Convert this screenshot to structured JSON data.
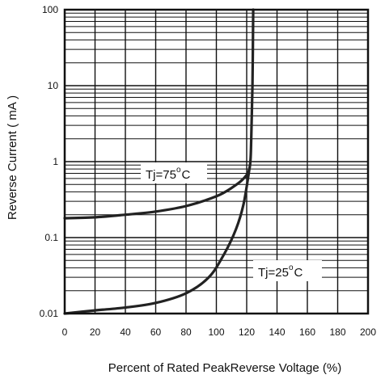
{
  "chart_data": {
    "type": "line",
    "title": "",
    "xlabel": "Percent of Rated PeakReverse Voltage (%)",
    "ylabel": "Reverse Current ( mA )",
    "xlim": [
      0,
      200
    ],
    "ylim": [
      0.01,
      100
    ],
    "yscale": "log",
    "grid": true,
    "x_ticks": [
      "0",
      "20",
      "40",
      "60",
      "80",
      "100",
      "120",
      "140",
      "160",
      "180",
      "200"
    ],
    "y_ticks": [
      "0.01",
      "0.1",
      "1",
      "10",
      "100"
    ],
    "series": [
      {
        "label_prefix": "Tj=75",
        "label_degree": "o",
        "label_suffix": "C",
        "points": [
          [
            0,
            0.18
          ],
          [
            20,
            0.185
          ],
          [
            40,
            0.2
          ],
          [
            60,
            0.22
          ],
          [
            80,
            0.26
          ],
          [
            100,
            0.35
          ],
          [
            110,
            0.45
          ],
          [
            118,
            0.6
          ],
          [
            122,
            0.85
          ],
          [
            123,
            2
          ],
          [
            123.8,
            10
          ],
          [
            124.3,
            100
          ]
        ]
      },
      {
        "label_prefix": "Tj=25",
        "label_degree": "o",
        "label_suffix": "C",
        "points": [
          [
            0,
            0.01
          ],
          [
            20,
            0.011
          ],
          [
            40,
            0.012
          ],
          [
            60,
            0.0138
          ],
          [
            80,
            0.0185
          ],
          [
            95,
            0.03
          ],
          [
            105,
            0.06
          ],
          [
            113,
            0.13
          ],
          [
            118,
            0.28
          ],
          [
            122,
            0.85
          ]
        ]
      }
    ],
    "colors": {
      "line": "#222222",
      "grid": "#111111",
      "axis": "#111111"
    }
  }
}
